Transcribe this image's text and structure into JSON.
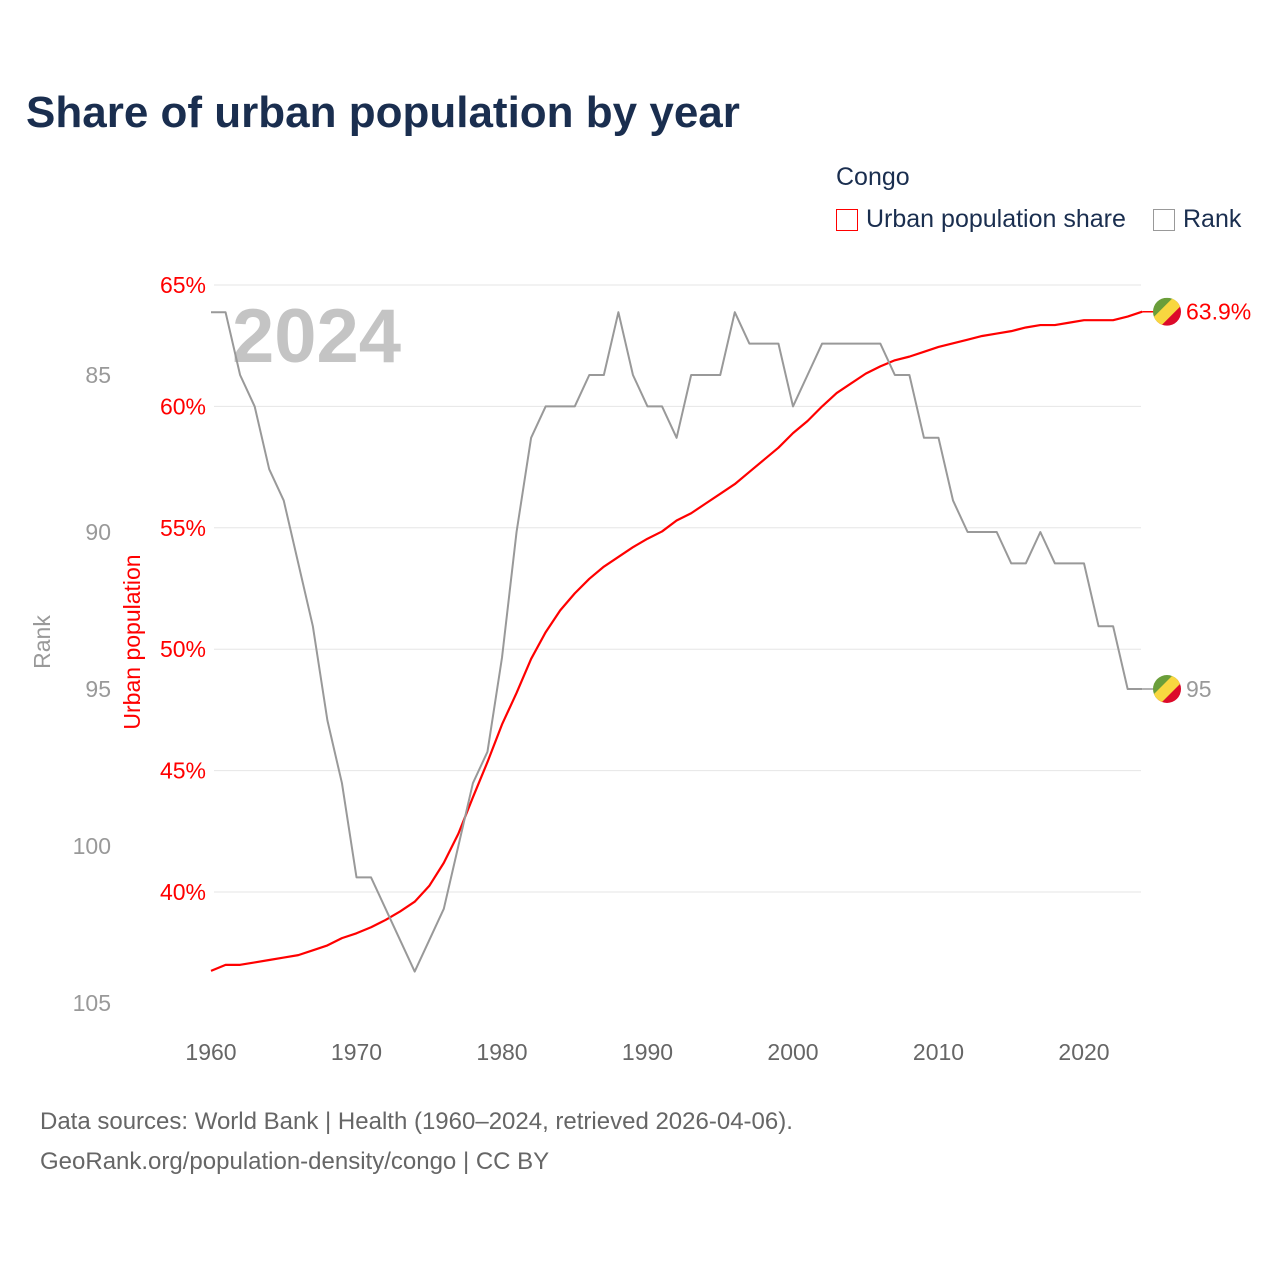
{
  "title": "Share of urban population by year",
  "legend": {
    "title": "Congo",
    "items": [
      {
        "label": "Urban population share",
        "color": "#ff0000"
      },
      {
        "label": "Rank",
        "color": "#999999"
      }
    ]
  },
  "year_watermark": "2024",
  "source_line1": "Data sources: World Bank | Health (1960–2024, retrieved 2026-04-06).",
  "source_line2": "GeoRank.org/population-density/congo | CC BY",
  "chart_data": {
    "type": "line",
    "title": "Share of urban population by year",
    "x": [
      1960,
      1961,
      1962,
      1963,
      1964,
      1965,
      1966,
      1967,
      1968,
      1969,
      1970,
      1971,
      1972,
      1973,
      1974,
      1975,
      1976,
      1977,
      1978,
      1979,
      1980,
      1981,
      1982,
      1983,
      1984,
      1985,
      1986,
      1987,
      1988,
      1989,
      1990,
      1991,
      1992,
      1993,
      1994,
      1995,
      1996,
      1997,
      1998,
      1999,
      2000,
      2001,
      2002,
      2003,
      2004,
      2005,
      2006,
      2007,
      2008,
      2009,
      2010,
      2011,
      2012,
      2013,
      2014,
      2015,
      2016,
      2017,
      2018,
      2019,
      2020,
      2021,
      2022,
      2023,
      2024
    ],
    "xticks": [
      "1960",
      "1970",
      "1980",
      "1990",
      "2000",
      "2010",
      "2020"
    ],
    "xlim": [
      1960,
      2024
    ],
    "series": [
      {
        "name": "Urban population share",
        "axis": "left",
        "unit": "%",
        "color": "#ff0000",
        "values": [
          36.75,
          37.0,
          37.0,
          37.1,
          37.2,
          37.3,
          37.4,
          37.6,
          37.8,
          38.1,
          38.3,
          38.55,
          38.85,
          39.2,
          39.6,
          40.25,
          41.2,
          42.4,
          43.9,
          45.35,
          46.9,
          48.2,
          49.6,
          50.7,
          51.6,
          52.3,
          52.9,
          53.4,
          53.8,
          54.2,
          54.55,
          54.85,
          55.3,
          55.6,
          56.0,
          56.4,
          56.8,
          57.3,
          57.8,
          58.3,
          58.9,
          59.4,
          60.0,
          60.55,
          60.95,
          61.35,
          61.65,
          61.9,
          62.05,
          62.25,
          62.45,
          62.6,
          62.75,
          62.9,
          63.0,
          63.1,
          63.25,
          63.35,
          63.35,
          63.45,
          63.55,
          63.55,
          63.55,
          63.7,
          63.9
        ],
        "end_label": "63.9%"
      },
      {
        "name": "Rank",
        "axis": "right-inverted",
        "color": "#999999",
        "values": [
          83,
          83,
          85,
          86,
          88,
          89,
          91,
          93,
          96,
          98,
          101,
          101,
          102,
          103,
          104,
          103,
          102,
          100,
          98,
          97,
          94,
          90,
          87,
          86,
          86,
          86,
          85,
          85,
          83,
          85,
          86,
          86,
          87,
          85,
          85,
          85,
          83,
          84,
          84,
          84,
          86,
          85,
          84,
          84,
          84,
          84,
          84,
          85,
          85,
          87,
          87,
          89,
          90,
          90,
          90,
          91,
          91,
          90,
          91,
          91,
          91,
          93,
          93,
          95,
          95
        ],
        "end_label": "95"
      }
    ],
    "ylabel_left": "Urban population",
    "yticks_left": [
      "65%",
      "60%",
      "55%",
      "50%",
      "45%",
      "40%"
    ],
    "ylim_left": [
      35.5,
      65
    ],
    "ylabel_rank": "Rank",
    "yticks_rank": [
      "85",
      "90",
      "95",
      "100",
      "105"
    ],
    "ylim_rank": [
      82,
      105
    ],
    "grid": true,
    "legend_position": "top-right"
  }
}
